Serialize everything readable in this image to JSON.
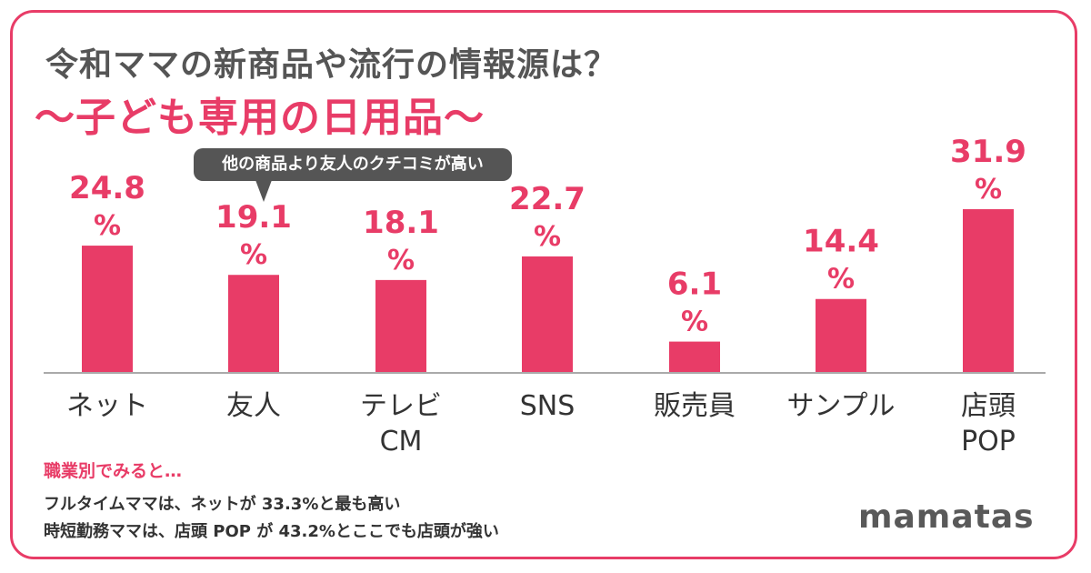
{
  "title": "令和ママの新商品や流行の情報源は？",
  "subtitle": "～子ども専用の日用品～",
  "callout": "他の商品より友人のクチコミが高い",
  "chart_data": {
    "type": "bar",
    "categories": [
      "ネット",
      "友人",
      "テレビ CM",
      "SNS",
      "販売員",
      "サンプル",
      "店頭 POP"
    ],
    "category_lines": [
      [
        "ネット"
      ],
      [
        "友人"
      ],
      [
        "テレビ",
        "CM"
      ],
      [
        "SNS"
      ],
      [
        "販売員"
      ],
      [
        "サンプル"
      ],
      [
        "店頭",
        "POP"
      ]
    ],
    "values": [
      24.8,
      19.1,
      18.1,
      22.7,
      6.1,
      14.4,
      31.9
    ],
    "value_labels": [
      "24.8",
      "19.1",
      "18.1",
      "22.7",
      "6.1",
      "14.4",
      "31.9"
    ],
    "unit": "%",
    "bar_color": "#e83c67",
    "label_color": "#e83c67",
    "category_color": "#333333",
    "ylim": [
      0,
      31.9
    ]
  },
  "notes": {
    "heading": "職業別でみると…",
    "line1": "フルタイムママは、ネットが 33.3%と最も高い",
    "line2": "時短勤務ママは、店頭 POP が 43.2%とここでも店頭が強い"
  },
  "brand": "mamatas",
  "colors": {
    "accent": "#e83c67",
    "dark": "#555555"
  }
}
